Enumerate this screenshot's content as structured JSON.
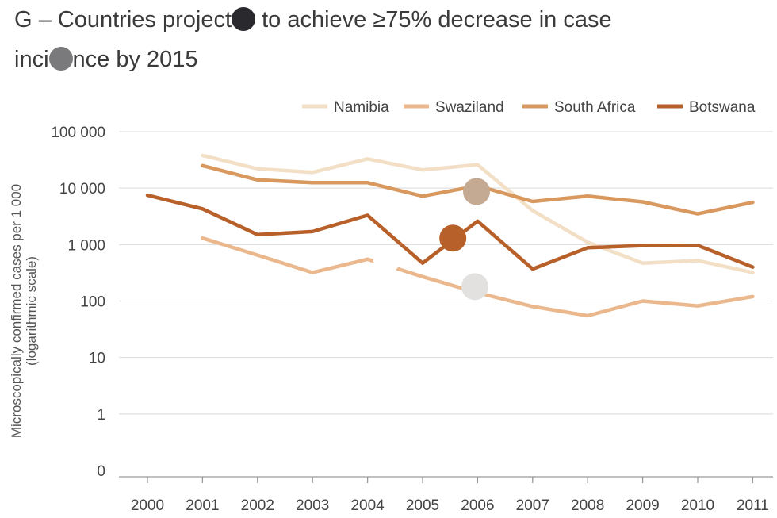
{
  "title": {
    "line1_a": "G – Countries project",
    "line1_b": " to achieve ≥75% decrease in case",
    "line2_a": "inci",
    "line2_b": "nce by 2015",
    "dot1_color": "#2a2a2e",
    "dot2_color": "#7a797c"
  },
  "chart_data": {
    "type": "line",
    "title": "G – Countries projected to achieve ≥75% decrease in case incidence by 2015",
    "ylabel_line1": "Microscopically confirmed cases per 1 000",
    "ylabel_line2": "(logarithmic scale)",
    "xlabel": "",
    "y_scale": "log",
    "ylim": [
      0,
      100000
    ],
    "y_ticks": [
      {
        "value": 100000,
        "label": "100 000"
      },
      {
        "value": 10000,
        "label": "10 000"
      },
      {
        "value": 1000,
        "label": "1 000"
      },
      {
        "value": 100,
        "label": "100"
      },
      {
        "value": 10,
        "label": "10"
      },
      {
        "value": 1,
        "label": "1"
      },
      {
        "value": 0.1,
        "label": "0"
      }
    ],
    "x": [
      "2000",
      "2001",
      "2002",
      "2003",
      "2004",
      "2005",
      "2006",
      "2007",
      "2008",
      "2009",
      "2010",
      "2011"
    ],
    "legend_position": "top-right",
    "grid": "horizontal",
    "series": [
      {
        "name": "Namibia",
        "color": "#f2dfc6",
        "values": [
          null,
          38000,
          22000,
          19000,
          33000,
          21000,
          26000,
          4000,
          1100,
          470,
          520,
          320
        ]
      },
      {
        "name": "Swaziland",
        "color": "#ebb78c",
        "values": [
          null,
          1300,
          650,
          320,
          550,
          270,
          140,
          80,
          55,
          100,
          82,
          120
        ]
      },
      {
        "name": "South Africa",
        "color": "#d9985e",
        "values": [
          null,
          25000,
          14000,
          12500,
          12500,
          7200,
          11000,
          5800,
          7200,
          5700,
          3500,
          5600
        ]
      },
      {
        "name": "Botswana",
        "color": "#b8602a",
        "values": [
          7500,
          4300,
          1500,
          1700,
          3300,
          470,
          2600,
          370,
          880,
          960,
          970,
          400
        ]
      }
    ],
    "markers": [
      {
        "x": 5.98,
        "y": 8700,
        "color": "#c5aa93"
      },
      {
        "x": 5.55,
        "y": 1300,
        "color": "#b8602a"
      },
      {
        "x": 5.95,
        "y": 180,
        "color": "#e3e1df"
      },
      {
        "x": 4.35,
        "y": 540,
        "color": "#ffffff"
      }
    ]
  }
}
